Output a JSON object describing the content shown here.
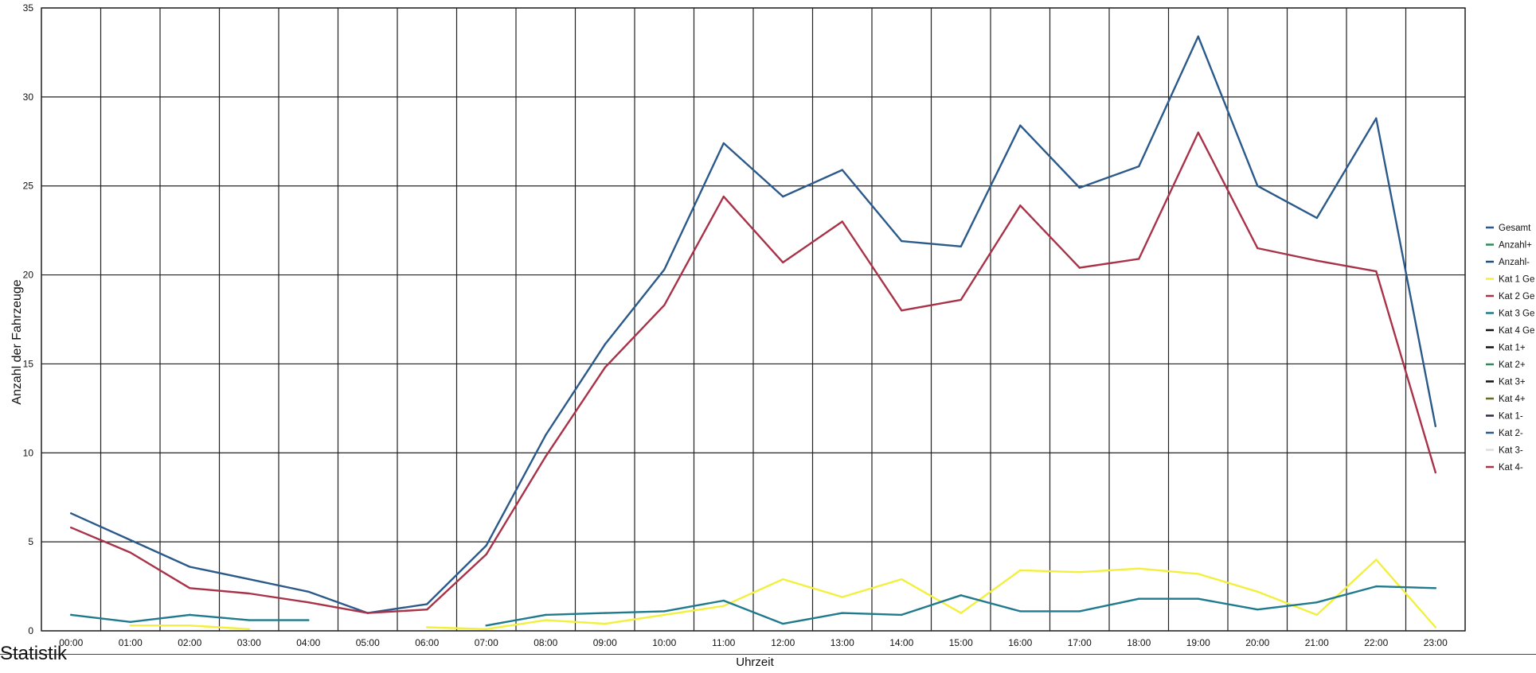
{
  "footer": {
    "title": "Statistik"
  },
  "chart_data": {
    "type": "line",
    "title": "",
    "xlabel": "Uhrzeit",
    "ylabel": "Anzahl der Fahrzeuge",
    "ylim": [
      0,
      35
    ],
    "yticks": [
      0,
      5,
      10,
      15,
      20,
      25,
      30,
      35
    ],
    "grid": true,
    "legend_position": "right",
    "categories": [
      "00:00",
      "01:00",
      "02:00",
      "03:00",
      "04:00",
      "05:00",
      "06:00",
      "07:00",
      "08:00",
      "09:00",
      "10:00",
      "11:00",
      "12:00",
      "13:00",
      "14:00",
      "15:00",
      "16:00",
      "17:00",
      "18:00",
      "19:00",
      "20:00",
      "21:00",
      "22:00",
      "23:00"
    ],
    "legend": [
      {
        "label": "Gesamt",
        "color": "#2b5a8a"
      },
      {
        "label": "Anzahl+",
        "color": "#2e8b57"
      },
      {
        "label": "Anzahl-",
        "color": "#1f4e79"
      },
      {
        "label": "Kat 1 Ge",
        "color": "#f2f03c"
      },
      {
        "label": "Kat 2 Ge",
        "color": "#a83248"
      },
      {
        "label": "Kat 3 Ge",
        "color": "#1e7a8c"
      },
      {
        "label": "Kat 4 Ge",
        "color": "#111111"
      },
      {
        "label": "Kat 1+",
        "color": "#111111"
      },
      {
        "label": "Kat 2+",
        "color": "#2e8b57"
      },
      {
        "label": "Kat 3+",
        "color": "#111111"
      },
      {
        "label": "Kat 4+",
        "color": "#6b6b1e"
      },
      {
        "label": "Kat 1-",
        "color": "#2a2a4a"
      },
      {
        "label": "Kat 2-",
        "color": "#2b5a8a"
      },
      {
        "label": "Kat 3-",
        "color": "#dddddd"
      },
      {
        "label": "Kat 4-",
        "color": "#a83248"
      }
    ],
    "series": [
      {
        "name": "Gesamt",
        "color": "#2b5a8a",
        "values": [
          6.6,
          5.1,
          3.6,
          2.9,
          2.2,
          1.0,
          1.5,
          4.8,
          11.0,
          16.1,
          20.3,
          27.4,
          24.4,
          25.9,
          21.9,
          21.6,
          28.4,
          24.9,
          26.1,
          33.4,
          25.0,
          23.2,
          28.8,
          11.5
        ]
      },
      {
        "name": "Kat 2 Ge",
        "color": "#a83248",
        "values": [
          5.8,
          4.4,
          2.4,
          2.1,
          1.6,
          1.0,
          1.2,
          4.3,
          9.8,
          14.8,
          18.3,
          24.4,
          20.7,
          23.0,
          18.0,
          18.6,
          23.9,
          20.4,
          20.9,
          28.0,
          21.5,
          20.8,
          20.2,
          8.9
        ]
      },
      {
        "name": "Kat 1 Ge",
        "color": "#f2f03c",
        "values": [
          null,
          0.3,
          0.3,
          0.1,
          null,
          null,
          0.2,
          0.1,
          0.6,
          0.4,
          0.9,
          1.4,
          2.9,
          1.9,
          2.9,
          1.0,
          3.4,
          3.3,
          3.5,
          3.2,
          2.2,
          0.9,
          4.0,
          0.2
        ]
      },
      {
        "name": "Kat 3 Ge",
        "color": "#1e7a8c",
        "values": [
          0.9,
          0.5,
          0.9,
          0.6,
          0.6,
          null,
          null,
          0.3,
          0.9,
          1.0,
          1.1,
          1.7,
          0.4,
          1.0,
          0.9,
          2.0,
          1.1,
          1.1,
          1.8,
          1.8,
          1.2,
          1.6,
          2.5,
          2.4
        ]
      }
    ]
  }
}
